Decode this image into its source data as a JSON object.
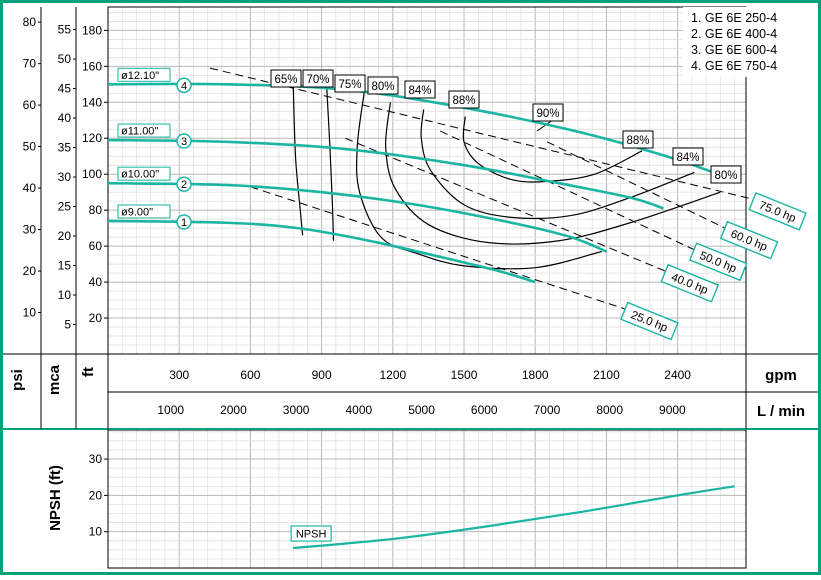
{
  "chart_data": [
    {
      "type": "line",
      "title": "",
      "legend": [
        "1. GE 6E 250-4",
        "2. GE 6E 400-4",
        "3. GE 6E 600-4",
        "4. GE 6E 750-4"
      ],
      "legend_position": "top-right",
      "grid": true,
      "x_axes": {
        "gpm": {
          "label": "gpm",
          "ticks": [
            "300",
            "600",
            "900",
            "1200",
            "1500",
            "1800",
            "2100",
            "2400"
          ],
          "range": [
            0,
            2688
          ]
        },
        "lmin": {
          "label": "L / min",
          "ticks": [
            "1000",
            "2000",
            "3000",
            "4000",
            "5000",
            "6000",
            "7000",
            "8000",
            "9000"
          ]
        }
      },
      "y_axes": {
        "psi": {
          "label": "psi",
          "ticks": [
            "10",
            "20",
            "30",
            "40",
            "50",
            "60",
            "70",
            "80"
          ]
        },
        "mca": {
          "label": "mca",
          "ticks": [
            "5",
            "10",
            "15",
            "20",
            "25",
            "30",
            "35",
            "40",
            "45",
            "50",
            "55"
          ]
        },
        "ft": {
          "label": "ft",
          "ticks": [
            "20",
            "40",
            "60",
            "80",
            "100",
            "120",
            "140",
            "160",
            "180"
          ],
          "range": [
            0,
            193
          ]
        }
      },
      "impeller_curves": [
        {
          "number": "1",
          "diameter": "ø9.00\"",
          "points": [
            [
              0,
              74
            ],
            [
              500,
              73
            ],
            [
              800,
              70
            ],
            [
              1100,
              63
            ],
            [
              1400,
              54
            ],
            [
              1650,
              46
            ],
            [
              1800,
              40
            ]
          ]
        },
        {
          "number": "2",
          "diameter": "ø10.00\"",
          "points": [
            [
              0,
              95
            ],
            [
              500,
              94
            ],
            [
              900,
              90
            ],
            [
              1300,
              83
            ],
            [
              1700,
              73
            ],
            [
              1950,
              65
            ],
            [
              2100,
              57
            ]
          ]
        },
        {
          "number": "3",
          "diameter": "ø11.00\"",
          "points": [
            [
              0,
              119
            ],
            [
              500,
              118
            ],
            [
              1000,
              114
            ],
            [
              1500,
              105
            ],
            [
              1900,
              95
            ],
            [
              2200,
              87
            ],
            [
              2340,
              81
            ]
          ]
        },
        {
          "number": "4",
          "diameter": "ø12.10\"",
          "points": [
            [
              0,
              150
            ],
            [
              500,
              150
            ],
            [
              1000,
              147
            ],
            [
              1500,
              137
            ],
            [
              2000,
              123
            ],
            [
              2400,
              108
            ],
            [
              2650,
              96
            ]
          ]
        }
      ],
      "power_lines": [
        {
          "label": "25.0 hp",
          "points": [
            [
              600,
              93
            ],
            [
              2180,
              25
            ]
          ]
        },
        {
          "label": "40.0 hp",
          "points": [
            [
              1000,
              120
            ],
            [
              2350,
              46
            ]
          ]
        },
        {
          "label": "50.0 hp",
          "points": [
            [
              1400,
              124
            ],
            [
              2470,
              58
            ]
          ]
        },
        {
          "label": "60.0 hp",
          "points": [
            [
              1850,
              118
            ],
            [
              2600,
              70
            ]
          ]
        },
        {
          "label": "75.0 hp",
          "points": [
            [
              430,
              159
            ],
            [
              2720,
              86
            ]
          ]
        }
      ],
      "efficiency_contours": [
        {
          "label": "65%",
          "points": [
            [
              780,
              152
            ],
            [
              790,
              110
            ],
            [
              810,
              80
            ],
            [
              820,
              66
            ]
          ]
        },
        {
          "label": "70%",
          "points": [
            [
              920,
              152
            ],
            [
              935,
              115
            ],
            [
              945,
              85
            ],
            [
              950,
              63
            ]
          ]
        },
        {
          "label": "75%",
          "points": [
            [
              1080,
              146
            ],
            [
              1050,
              115
            ],
            [
              1060,
              90
            ],
            [
              1150,
              65
            ],
            [
              1300,
              56
            ],
            [
              1500,
              49
            ],
            [
              1800,
              48
            ],
            [
              2080,
              57
            ]
          ]
        },
        {
          "label": "80%",
          "points": [
            [
              1190,
              140
            ],
            [
              1170,
              115
            ],
            [
              1210,
              92
            ],
            [
              1350,
              72
            ],
            [
              1600,
              62
            ],
            [
              1900,
              63
            ],
            [
              2200,
              73
            ],
            [
              2580,
              90
            ]
          ]
        },
        {
          "label": "84%",
          "points": [
            [
              1330,
              136
            ],
            [
              1320,
              120
            ],
            [
              1360,
              102
            ],
            [
              1500,
              83
            ],
            [
              1700,
              76
            ],
            [
              1950,
              77
            ],
            [
              2200,
              87
            ],
            [
              2470,
              101
            ]
          ]
        },
        {
          "label": "88%",
          "points": [
            [
              1505,
              132
            ],
            [
              1500,
              118
            ],
            [
              1560,
              106
            ],
            [
              1700,
              97
            ],
            [
              1850,
              96
            ],
            [
              2050,
              100
            ],
            [
              2250,
              113
            ]
          ]
        },
        {
          "label": "90%",
          "points": []
        }
      ],
      "efficiency_labels": [
        "65%",
        "70%",
        "75%",
        "80%",
        "84%",
        "88%",
        "90%",
        "88%",
        "84%",
        "80%"
      ]
    },
    {
      "type": "line",
      "title": "",
      "ylabel": "NPSH (ft)",
      "y_ticks": [
        "10",
        "20",
        "30"
      ],
      "ylim": [
        0,
        38
      ],
      "series": [
        {
          "name": "NPSH",
          "points": [
            [
              780,
              5.5
            ],
            [
              1200,
              8
            ],
            [
              1600,
              11.5
            ],
            [
              2000,
              15.5
            ],
            [
              2400,
              20
            ],
            [
              2640,
              22.5
            ]
          ]
        }
      ]
    }
  ],
  "colors": {
    "frame": "#00a37a",
    "curve": "#1bb5a3",
    "ink": "#000000",
    "grid": "#b8b8b8",
    "grid_minor": "#dcdcdc"
  }
}
